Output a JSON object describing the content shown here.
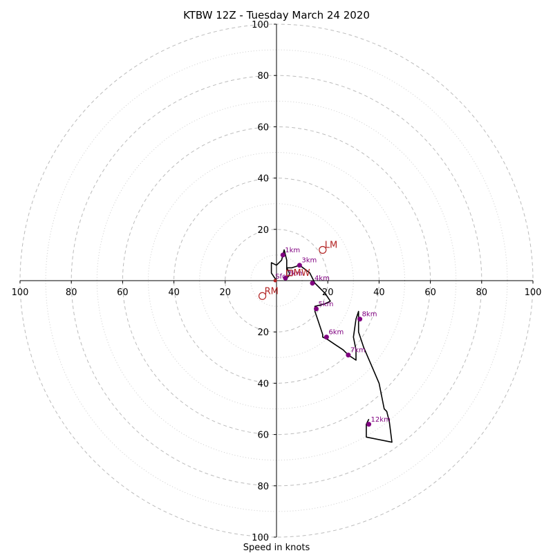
{
  "chart_data": {
    "type": "hodograph",
    "title": "KTBW 12Z - Tuesday March 24 2020",
    "xlabel": "Speed in knots",
    "axis_range": [
      -100,
      100
    ],
    "major_ring_step": 20,
    "minor_ring_step": 10,
    "grid": true,
    "tick_labels": {
      "x": [
        "100",
        "80",
        "60",
        "40",
        "20",
        "20",
        "40",
        "60",
        "80",
        "100"
      ],
      "y_top": [
        "100",
        "80",
        "60",
        "40",
        "20"
      ],
      "y_bottom": [
        "20",
        "40",
        "60",
        "80",
        "100"
      ]
    },
    "colors": {
      "trace": "#000000",
      "height_marker": "#800080",
      "storm_motion": "#b22222",
      "major_ring": "#bbbbbb",
      "minor_ring": "#cccccc"
    },
    "trace": [
      [
        0,
        0
      ],
      [
        -2,
        3
      ],
      [
        -2,
        7
      ],
      [
        0,
        6
      ],
      [
        2,
        8
      ],
      [
        3,
        12
      ],
      [
        4,
        8
      ],
      [
        4,
        5
      ],
      [
        5,
        3
      ],
      [
        5,
        2
      ],
      [
        4,
        1
      ],
      [
        4,
        5
      ],
      [
        6,
        5
      ],
      [
        9,
        6
      ],
      [
        13,
        3
      ],
      [
        15,
        -1
      ],
      [
        19,
        -5
      ],
      [
        21,
        -8
      ],
      [
        19,
        -9
      ],
      [
        15,
        -10
      ],
      [
        15,
        -12
      ],
      [
        16,
        -15
      ],
      [
        17,
        -18
      ],
      [
        18,
        -21
      ],
      [
        18,
        -22
      ],
      [
        20,
        -23
      ],
      [
        23,
        -25
      ],
      [
        26,
        -27
      ],
      [
        28,
        -29
      ],
      [
        31,
        -31
      ],
      [
        31,
        -27
      ],
      [
        30,
        -22
      ],
      [
        31,
        -15
      ],
      [
        32,
        -12
      ],
      [
        32,
        -20
      ],
      [
        34,
        -26
      ],
      [
        37,
        -33
      ],
      [
        40,
        -40
      ],
      [
        42,
        -50
      ],
      [
        43,
        -51
      ],
      [
        44,
        -55
      ],
      [
        45,
        -63
      ],
      [
        35,
        -61
      ],
      [
        35,
        -56
      ],
      [
        36,
        -54
      ]
    ],
    "height_markers": [
      {
        "label": "1km",
        "x": 2.5,
        "y": 10
      },
      {
        "label": "2km",
        "x": 3.5,
        "y": 1
      },
      {
        "label": "3km",
        "x": 9,
        "y": 6
      },
      {
        "label": "4km",
        "x": 14,
        "y": -1
      },
      {
        "label": "5km",
        "x": 15.5,
        "y": -11
      },
      {
        "label": "6km",
        "x": 19.5,
        "y": -22
      },
      {
        "label": "7km",
        "x": 28,
        "y": -29
      },
      {
        "label": "8km",
        "x": 32.5,
        "y": -15
      },
      {
        "label": "12km",
        "x": 36,
        "y": -56
      }
    ],
    "storm_motion": [
      {
        "label": "LM",
        "x": 18,
        "y": 12
      },
      {
        "label": "RM",
        "x": -5.5,
        "y": -6
      },
      {
        "label": "MW",
        "x": 5,
        "y": 3
      },
      {
        "label": "Sfc",
        "x": -0.5,
        "y": 0
      }
    ]
  }
}
